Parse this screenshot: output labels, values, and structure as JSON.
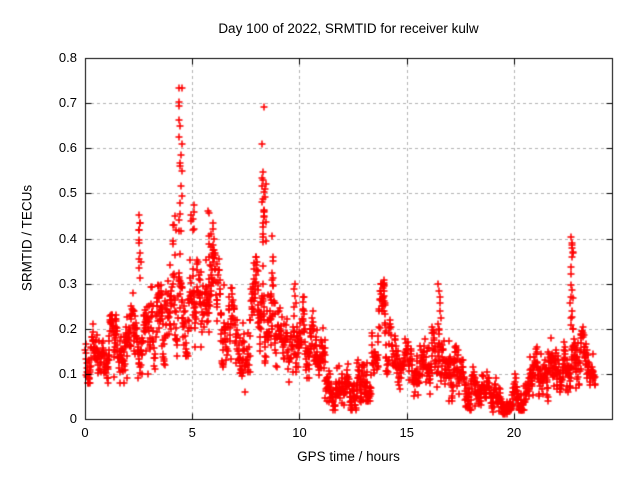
{
  "chart_data": {
    "type": "scatter",
    "title": "Day 100 of 2022, SRMTID for receiver kulw",
    "xlabel": "GPS time / hours",
    "ylabel": "SRMTID / TECUs",
    "marker": "plus",
    "marker_color": "#ff0000",
    "background_color": "#ffffff",
    "grid": true,
    "grid_color": "#b3b3b3",
    "border_color": "#000000",
    "xlim": [
      0,
      24.57
    ],
    "ylim": [
      0,
      0.8
    ],
    "xticks": [
      {
        "v": 0,
        "label": "0"
      },
      {
        "v": 5,
        "label": "5"
      },
      {
        "v": 10,
        "label": "10"
      },
      {
        "v": 15,
        "label": "15"
      },
      {
        "v": 20,
        "label": "20"
      }
    ],
    "yticks": [
      {
        "v": 0,
        "label": "0"
      },
      {
        "v": 0.1,
        "label": "0.1"
      },
      {
        "v": 0.2,
        "label": "0.2"
      },
      {
        "v": 0.3,
        "label": "0.3"
      },
      {
        "v": 0.4,
        "label": "0.4"
      },
      {
        "v": 0.5,
        "label": "0.5"
      },
      {
        "v": 0.6,
        "label": "0.6"
      },
      {
        "v": 0.7,
        "label": "0.7"
      },
      {
        "v": 0.8,
        "label": "0.8"
      }
    ],
    "series_description": "SRMTID scatter vs GPS time, dense band generated from envelope bands plus discrete spike columns",
    "bands": [
      {
        "h0": 0.0,
        "h1": 0.5,
        "c": 0.14,
        "lo": 0.08,
        "hi": 0.21,
        "n": 45
      },
      {
        "h0": 0.5,
        "h1": 1.0,
        "c": 0.13,
        "lo": 0.07,
        "hi": 0.2,
        "n": 45
      },
      {
        "h0": 1.0,
        "h1": 1.8,
        "c": 0.145,
        "lo": 0.08,
        "hi": 0.23,
        "n": 70
      },
      {
        "h0": 1.8,
        "h1": 2.6,
        "c": 0.16,
        "lo": 0.09,
        "hi": 0.28,
        "n": 70
      },
      {
        "h0": 2.6,
        "h1": 3.3,
        "c": 0.185,
        "lo": 0.1,
        "hi": 0.34,
        "n": 60
      },
      {
        "h0": 3.3,
        "h1": 4.0,
        "c": 0.21,
        "lo": 0.12,
        "hi": 0.36,
        "n": 60
      },
      {
        "h0": 4.0,
        "h1": 4.8,
        "c": 0.25,
        "lo": 0.14,
        "hi": 0.38,
        "n": 65
      },
      {
        "h0": 4.8,
        "h1": 5.6,
        "c": 0.27,
        "lo": 0.16,
        "hi": 0.4,
        "n": 65
      },
      {
        "h0": 5.6,
        "h1": 6.3,
        "c": 0.27,
        "lo": 0.15,
        "hi": 0.4,
        "n": 60
      },
      {
        "h0": 6.3,
        "h1": 7.0,
        "c": 0.16,
        "lo": 0.04,
        "hi": 0.3,
        "n": 55
      },
      {
        "h0": 7.0,
        "h1": 7.7,
        "c": 0.15,
        "lo": 0.06,
        "hi": 0.27,
        "n": 55
      },
      {
        "h0": 7.7,
        "h1": 8.3,
        "c": 0.22,
        "lo": 0.11,
        "hi": 0.36,
        "n": 55
      },
      {
        "h0": 8.3,
        "h1": 9.0,
        "c": 0.22,
        "lo": 0.11,
        "hi": 0.38,
        "n": 60
      },
      {
        "h0": 9.0,
        "h1": 9.7,
        "c": 0.16,
        "lo": 0.08,
        "hi": 0.25,
        "n": 55
      },
      {
        "h0": 9.7,
        "h1": 10.35,
        "c": 0.18,
        "lo": 0.09,
        "hi": 0.27,
        "n": 55
      },
      {
        "h0": 10.35,
        "h1": 11.2,
        "c": 0.15,
        "lo": 0.07,
        "hi": 0.25,
        "n": 70
      },
      {
        "h0": 11.2,
        "h1": 12.1,
        "c": 0.08,
        "lo": 0.02,
        "hi": 0.14,
        "n": 70
      },
      {
        "h0": 12.1,
        "h1": 12.9,
        "c": 0.07,
        "lo": 0.02,
        "hi": 0.13,
        "n": 70
      },
      {
        "h0": 12.9,
        "h1": 13.6,
        "c": 0.1,
        "lo": 0.04,
        "hi": 0.19,
        "n": 60
      },
      {
        "h0": 13.6,
        "h1": 14.5,
        "c": 0.17,
        "lo": 0.08,
        "hi": 0.3,
        "n": 70
      },
      {
        "h0": 14.5,
        "h1": 15.3,
        "c": 0.11,
        "lo": 0.05,
        "hi": 0.18,
        "n": 60
      },
      {
        "h0": 15.3,
        "h1": 16.1,
        "c": 0.1,
        "lo": 0.05,
        "hi": 0.18,
        "n": 60
      },
      {
        "h0": 16.1,
        "h1": 16.9,
        "c": 0.12,
        "lo": 0.05,
        "hi": 0.22,
        "n": 60
      },
      {
        "h0": 16.9,
        "h1": 17.4,
        "c": 0.12,
        "lo": 0.04,
        "hi": 0.24,
        "n": 45
      },
      {
        "h0": 17.4,
        "h1": 18.2,
        "c": 0.07,
        "lo": 0.02,
        "hi": 0.13,
        "n": 65
      },
      {
        "h0": 18.2,
        "h1": 18.8,
        "c": 0.08,
        "lo": 0.03,
        "hi": 0.15,
        "n": 55
      },
      {
        "h0": 18.8,
        "h1": 19.9,
        "c": 0.045,
        "lo": 0.01,
        "hi": 0.09,
        "n": 85
      },
      {
        "h0": 19.9,
        "h1": 20.7,
        "c": 0.06,
        "lo": 0.02,
        "hi": 0.12,
        "n": 65
      },
      {
        "h0": 20.7,
        "h1": 21.6,
        "c": 0.09,
        "lo": 0.04,
        "hi": 0.17,
        "n": 75
      },
      {
        "h0": 21.6,
        "h1": 22.3,
        "c": 0.11,
        "lo": 0.05,
        "hi": 0.19,
        "n": 65
      },
      {
        "h0": 22.3,
        "h1": 22.9,
        "c": 0.11,
        "lo": 0.05,
        "hi": 0.2,
        "n": 55
      },
      {
        "h0": 22.9,
        "h1": 23.4,
        "c": 0.12,
        "lo": 0.06,
        "hi": 0.22,
        "n": 45
      },
      {
        "h0": 23.4,
        "h1": 23.8,
        "c": 0.09,
        "lo": 0.05,
        "hi": 0.15,
        "n": 30
      }
    ],
    "spikes": [
      {
        "h": 2.55,
        "dx": 0.06,
        "values": [
          0.455,
          0.44,
          0.415,
          0.39,
          0.37,
          0.345,
          0.33,
          0.31
        ]
      },
      {
        "h": 4.15,
        "dx": 0.1,
        "values": [
          0.45,
          0.43,
          0.42,
          0.4,
          0.385,
          0.37
        ]
      },
      {
        "h": 4.45,
        "dx": 0.08,
        "values": [
          0.735,
          0.725,
          0.71,
          0.69,
          0.655,
          0.64,
          0.625,
          0.6,
          0.578,
          0.567,
          0.52,
          0.5,
          0.48,
          0.46,
          0.44,
          0.42
        ]
      },
      {
        "h": 5.0,
        "dx": 0.08,
        "values": [
          0.475,
          0.465,
          0.455,
          0.445,
          0.435
        ]
      },
      {
        "h": 5.85,
        "dx": 0.15,
        "values": [
          0.465,
          0.45,
          0.44,
          0.425,
          0.41,
          0.4,
          0.39,
          0.385,
          0.375,
          0.37,
          0.36
        ]
      },
      {
        "h": 8.35,
        "dx": 0.1,
        "values": [
          0.685,
          0.607,
          0.55,
          0.54,
          0.53,
          0.52,
          0.51,
          0.505,
          0.5,
          0.49,
          0.485,
          0.475,
          0.465,
          0.455,
          0.445,
          0.435,
          0.42,
          0.41,
          0.4,
          0.395
        ]
      },
      {
        "h": 8.75,
        "dx": 0.06,
        "values": [
          0.41,
          0.36,
          0.35,
          0.32,
          0.3
        ]
      },
      {
        "h": 9.8,
        "dx": 0.1,
        "values": [
          0.3,
          0.285,
          0.27,
          0.26,
          0.25
        ]
      },
      {
        "h": 13.9,
        "dx": 0.1,
        "values": [
          0.31,
          0.3,
          0.29,
          0.28,
          0.27,
          0.26,
          0.25,
          0.24,
          0.23
        ]
      },
      {
        "h": 16.55,
        "dx": 0.08,
        "values": [
          0.3,
          0.285,
          0.27,
          0.255,
          0.24,
          0.225,
          0.21,
          0.2
        ]
      },
      {
        "h": 22.7,
        "dx": 0.07,
        "values": [
          0.405,
          0.395,
          0.385,
          0.37,
          0.36,
          0.335,
          0.32,
          0.3,
          0.285,
          0.27,
          0.255,
          0.24,
          0.225,
          0.21
        ]
      }
    ]
  },
  "layout_note": "gnuplot-style scatter chart, 640x480"
}
